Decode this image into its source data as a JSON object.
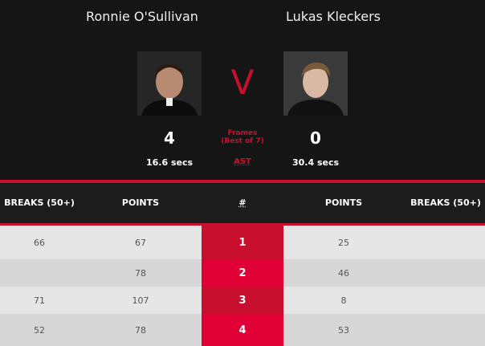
{
  "player1": {
    "name": "Ronnie O'Sullivan",
    "frames": "4",
    "avg_shot_time": "16.6 secs"
  },
  "player2": {
    "name": "Lukas Kleckers",
    "frames": "0",
    "avg_shot_time": "30.4 secs"
  },
  "versus": "V",
  "frames_label": "Frames",
  "best_of": "(Best of 7)",
  "ast_label": "AST",
  "columns": [
    "BREAKS (50+)",
    "POINTS",
    "#",
    "POINTS",
    "BREAKS (50+)"
  ],
  "rows": [
    {
      "b1": "66",
      "p1": "67",
      "n": "1",
      "p2": "25",
      "b2": ""
    },
    {
      "b1": "",
      "p1": "78",
      "n": "2",
      "p2": "46",
      "b2": ""
    },
    {
      "b1": "71",
      "p1": "107",
      "n": "3",
      "p2": "8",
      "b2": ""
    },
    {
      "b1": "52",
      "p1": "78",
      "n": "4",
      "p2": "53",
      "b2": ""
    }
  ],
  "colors": {
    "accent": "#c8102e",
    "background": "#151515"
  }
}
